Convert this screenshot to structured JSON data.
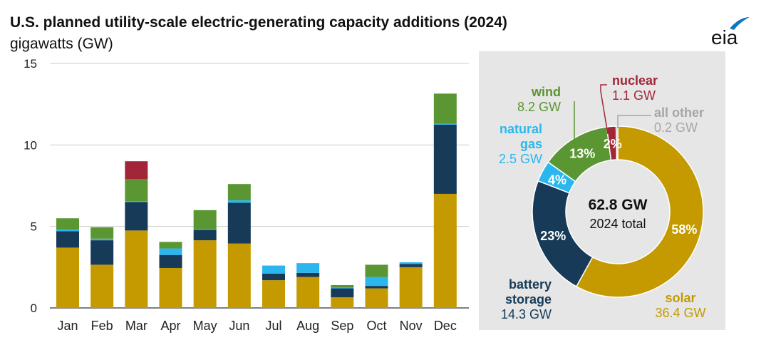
{
  "header": {
    "title": "U.S. planned utility-scale electric-generating capacity additions (2024)",
    "subtitle": "gigawatts (GW)",
    "logo_text": "eia"
  },
  "colors": {
    "solar": "#c49a00",
    "battery_storage": "#163a57",
    "natural_gas": "#2bb7ee",
    "wind": "#5a9632",
    "nuclear": "#a32638",
    "all_other": "#a6a6a6",
    "logo_blue": "#0e76bc",
    "grid": "#cccccc",
    "panel": "#e6e6e6"
  },
  "chart_data": [
    {
      "type": "bar",
      "stacked": true,
      "title": "U.S. planned utility-scale electric-generating capacity additions (2024)",
      "ylabel": "gigawatts (GW)",
      "xlabel": "",
      "ylim": [
        0,
        15
      ],
      "yticks": [
        0,
        5,
        10,
        15
      ],
      "grid": true,
      "categories": [
        "Jan",
        "Feb",
        "Mar",
        "Apr",
        "May",
        "Jun",
        "Jul",
        "Aug",
        "Sep",
        "Oct",
        "Nov",
        "Dec"
      ],
      "series": [
        {
          "name": "solar",
          "color_key": "solar",
          "values": [
            3.7,
            2.65,
            4.75,
            2.45,
            4.15,
            3.95,
            1.7,
            1.9,
            0.65,
            1.2,
            2.5,
            7.0
          ]
        },
        {
          "name": "battery storage",
          "color_key": "battery_storage",
          "values": [
            1.0,
            1.5,
            1.75,
            0.8,
            0.65,
            2.5,
            0.4,
            0.25,
            0.55,
            0.15,
            0.2,
            4.25
          ]
        },
        {
          "name": "natural gas",
          "color_key": "natural_gas",
          "values": [
            0.1,
            0.1,
            0.05,
            0.4,
            0.05,
            0.15,
            0.5,
            0.6,
            0.05,
            0.55,
            0.1,
            0.05
          ]
        },
        {
          "name": "wind",
          "color_key": "wind",
          "values": [
            0.7,
            0.7,
            1.35,
            0.4,
            1.15,
            1.0,
            0.0,
            0.0,
            0.15,
            0.75,
            0.0,
            1.85
          ]
        },
        {
          "name": "nuclear",
          "color_key": "nuclear",
          "values": [
            0,
            0,
            1.1,
            0,
            0,
            0,
            0,
            0,
            0,
            0,
            0,
            0
          ]
        },
        {
          "name": "all other",
          "color_key": "all_other",
          "values": [
            0,
            0,
            0,
            0,
            0,
            0,
            0,
            0,
            0,
            0,
            0,
            0
          ]
        }
      ]
    },
    {
      "type": "pie",
      "donut": true,
      "center_value": "62.8 GW",
      "center_label": "2024 total",
      "slices": [
        {
          "key": "solar",
          "name": "solar",
          "gw": "36.4 GW",
          "value": 36.4,
          "percent": 58,
          "percent_label": "58%",
          "color_key": "solar"
        },
        {
          "key": "battery",
          "name": "battery storage",
          "name_lines": [
            "battery",
            "storage"
          ],
          "gw": "14.3 GW",
          "value": 14.3,
          "percent": 23,
          "percent_label": "23%",
          "color_key": "battery_storage"
        },
        {
          "key": "gas",
          "name": "natural gas",
          "name_lines": [
            "natural",
            "gas"
          ],
          "gw": "2.5 GW",
          "value": 2.5,
          "percent": 4,
          "percent_label": "4%",
          "color_key": "natural_gas"
        },
        {
          "key": "wind",
          "name": "wind",
          "gw": "8.2 GW",
          "value": 8.2,
          "percent": 13,
          "percent_label": "13%",
          "color_key": "wind"
        },
        {
          "key": "nuclear",
          "name": "nuclear",
          "gw": "1.1 GW",
          "value": 1.1,
          "percent": 2,
          "percent_label": "2%",
          "color_key": "nuclear"
        },
        {
          "key": "other",
          "name": "all other",
          "gw": "0.2 GW",
          "value": 0.2,
          "percent": 0,
          "percent_label": "",
          "color_key": "all_other"
        }
      ]
    }
  ]
}
